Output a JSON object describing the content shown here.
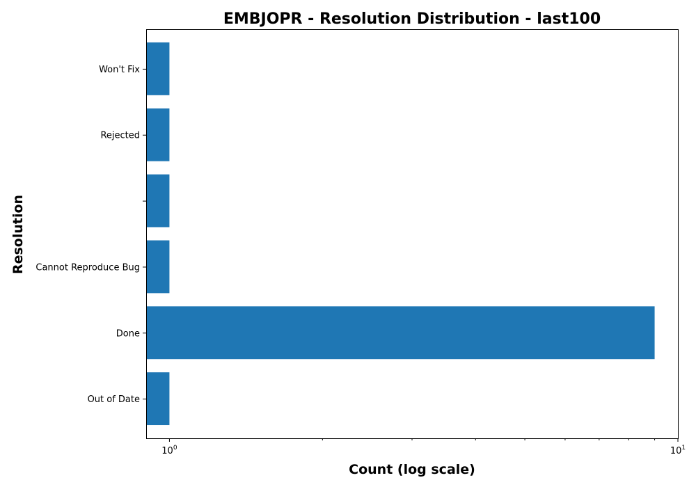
{
  "chart_data": {
    "type": "bar",
    "orientation": "horizontal",
    "title": "EMBJOPR - Resolution Distribution - last100",
    "xlabel": "Count (log scale)",
    "ylabel": "Resolution",
    "x_scale": "log",
    "xlim": [
      0.9,
      10
    ],
    "x_major_ticks": [
      {
        "value": 1,
        "base": "10",
        "exp": "0"
      },
      {
        "value": 10,
        "base": "10",
        "exp": "1"
      }
    ],
    "x_minor_ticks": [
      2,
      3,
      4,
      5,
      6,
      7,
      8,
      9
    ],
    "categories": [
      "Out of Date",
      "Done",
      "Cannot Reproduce Bug",
      "",
      "Rejected",
      "Won't Fix"
    ],
    "values": [
      1,
      9,
      1,
      1,
      1,
      1
    ],
    "bar_color": "#1f77b4",
    "grid": false,
    "legend": "none"
  }
}
